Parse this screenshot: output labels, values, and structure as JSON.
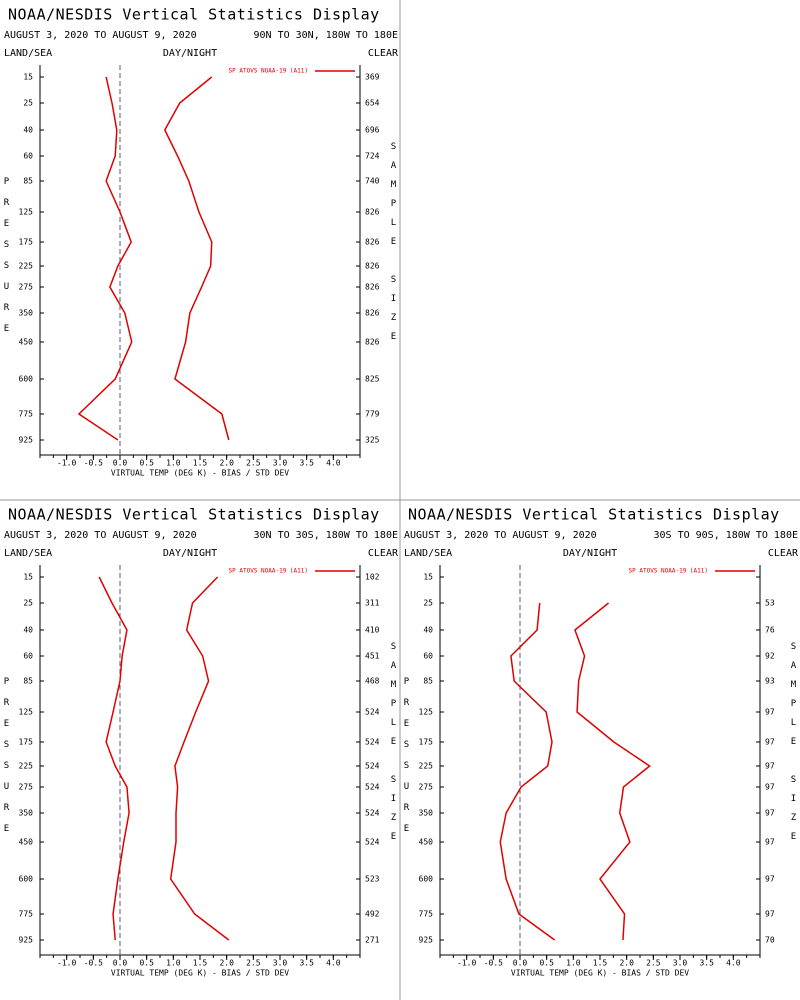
{
  "chart_data": [
    {
      "type": "line",
      "orientation": "horizontal",
      "title": "NOAA/NESDIS Vertical Statistics Display",
      "subtitle": "AUGUST 3, 2020 TO AUGUST 9, 2020",
      "region": "90N TO 30N, 180W TO 180E",
      "land_sea": "LAND/SEA",
      "day_night": "DAY/NIGHT",
      "sky": "CLEAR",
      "y_label": "PRESSURE",
      "y2_label": "SAMPLE SIZE",
      "x_label": "VIRTUAL TEMP (DEG K) - BIAS / STD DEV",
      "legend": "SP ATOVS NOAA-19 (A11)",
      "categories": [
        15,
        25,
        40,
        60,
        85,
        125,
        175,
        225,
        275,
        350,
        450,
        600,
        775,
        925
      ],
      "sample_sizes": [
        369,
        654,
        696,
        724,
        740,
        826,
        826,
        826,
        826,
        826,
        826,
        825,
        779,
        325
      ],
      "series": [
        {
          "color": "#e00000",
          "values": [
            -0.26,
            -0.15,
            -0.06,
            -0.09,
            -0.26,
            0,
            0.21,
            -0.04,
            -0.19,
            0.09,
            0.22,
            -0.09,
            -0.77,
            -0.04
          ]
        },
        {
          "color": "#e00000",
          "values": [
            1.72,
            1.12,
            0.84,
            1.08,
            1.29,
            1.48,
            1.72,
            1.7,
            1.53,
            1.31,
            1.23,
            1.03,
            1.91,
            2.04
          ]
        }
      ],
      "xlim": [
        -1.5,
        4.5
      ],
      "xticks": [
        {
          "value": -1,
          "label": "-1.0"
        },
        {
          "value": -0.5,
          "label": "-0.5"
        },
        {
          "value": 0,
          "label": "0.0"
        },
        {
          "value": 0.5,
          "label": "0.5"
        },
        {
          "value": 1,
          "label": "1.0"
        },
        {
          "value": 1.5,
          "label": "1.5"
        },
        {
          "value": 2,
          "label": "2.0"
        },
        {
          "value": 2.5,
          "label": "2.5"
        },
        {
          "value": 3,
          "label": "3.0"
        },
        {
          "value": 3.5,
          "label": "3.5"
        },
        {
          "value": 4,
          "label": "4.0"
        }
      ]
    },
    {
      "type": "line",
      "orientation": "horizontal",
      "title": "NOAA/NESDIS Vertical Statistics Display",
      "subtitle": "AUGUST 3, 2020 TO AUGUST 9, 2020",
      "region": "30N TO 30S, 180W TO 180E",
      "land_sea": "LAND/SEA",
      "day_night": "DAY/NIGHT",
      "sky": "CLEAR",
      "y_label": "PRESSURE",
      "y2_label": "SAMPLE SIZE",
      "x_label": "VIRTUAL TEMP (DEG K) - BIAS / STD DEV",
      "legend": "SP ATOVS NOAA-19 (A11)",
      "categories": [
        15,
        25,
        40,
        60,
        85,
        125,
        175,
        225,
        275,
        350,
        450,
        600,
        775,
        925
      ],
      "sample_sizes": [
        102,
        311,
        410,
        451,
        468,
        524,
        524,
        524,
        524,
        524,
        524,
        523,
        492,
        271
      ],
      "series": [
        {
          "color": "#e00000",
          "values": [
            -0.39,
            -0.15,
            0.13,
            0.04,
            0,
            -0.13,
            -0.26,
            -0.09,
            0.13,
            0.17,
            0.07,
            -0.04,
            -0.13,
            -0.09
          ]
        },
        {
          "color": "#e00000",
          "values": [
            1.83,
            1.36,
            1.25,
            1.55,
            1.66,
            1.42,
            1.2,
            1.03,
            1.08,
            1.05,
            1.05,
            0.95,
            1.4,
            2.04
          ]
        }
      ],
      "xlim": [
        -1.5,
        4.5
      ],
      "xticks": [
        {
          "value": -1,
          "label": "-1.0"
        },
        {
          "value": -0.5,
          "label": "-0.5"
        },
        {
          "value": 0,
          "label": "0.0"
        },
        {
          "value": 0.5,
          "label": "0.5"
        },
        {
          "value": 1,
          "label": "1.0"
        },
        {
          "value": 1.5,
          "label": "1.5"
        },
        {
          "value": 2,
          "label": "2.0"
        },
        {
          "value": 2.5,
          "label": "2.5"
        },
        {
          "value": 3,
          "label": "3.0"
        },
        {
          "value": 3.5,
          "label": "3.5"
        },
        {
          "value": 4,
          "label": "4.0"
        }
      ]
    },
    {
      "type": "line",
      "orientation": "horizontal",
      "title": "NOAA/NESDIS Vertical Statistics Display",
      "subtitle": "AUGUST 3, 2020 TO AUGUST 9, 2020",
      "region": "30S TO 90S, 180W TO 180E",
      "land_sea": "LAND/SEA",
      "day_night": "DAY/NIGHT",
      "sky": "CLEAR",
      "y_label": "PRESSURE",
      "y2_label": "SAMPLE SIZE",
      "x_label": "VIRTUAL TEMP (DEG K) - BIAS / STD DEV",
      "legend": "SP ATOVS NOAA-19 (A11)",
      "categories": [
        15,
        25,
        40,
        60,
        85,
        125,
        175,
        225,
        275,
        350,
        450,
        600,
        775,
        925
      ],
      "sample_sizes": [
        null,
        53,
        76,
        92,
        93,
        97,
        97,
        97,
        97,
        97,
        97,
        97,
        97,
        70
      ],
      "series": [
        {
          "color": "#e00000",
          "values": [
            null,
            0.37,
            0.32,
            -0.17,
            -0.11,
            0.49,
            0.6,
            0.52,
            0.02,
            -0.26,
            -0.37,
            -0.26,
            -0.02,
            0.65
          ]
        },
        {
          "color": "#e00000",
          "values": [
            null,
            1.66,
            1.03,
            1.21,
            1.1,
            1.07,
            1.76,
            2.43,
            1.94,
            1.87,
            2.06,
            1.5,
            1.96,
            1.93
          ]
        }
      ],
      "xlim": [
        -1.5,
        4.5
      ],
      "xticks": [
        {
          "value": -1,
          "label": "-1.0"
        },
        {
          "value": -0.5,
          "label": "-0.5"
        },
        {
          "value": 0,
          "label": "0.0"
        },
        {
          "value": 0.5,
          "label": "0.5"
        },
        {
          "value": 1,
          "label": "1.0"
        },
        {
          "value": 1.5,
          "label": "1.5"
        },
        {
          "value": 2,
          "label": "2.0"
        },
        {
          "value": 2.5,
          "label": "2.5"
        },
        {
          "value": 3,
          "label": "3.0"
        },
        {
          "value": 3.5,
          "label": "3.5"
        },
        {
          "value": 4,
          "label": "4.0"
        }
      ]
    }
  ]
}
